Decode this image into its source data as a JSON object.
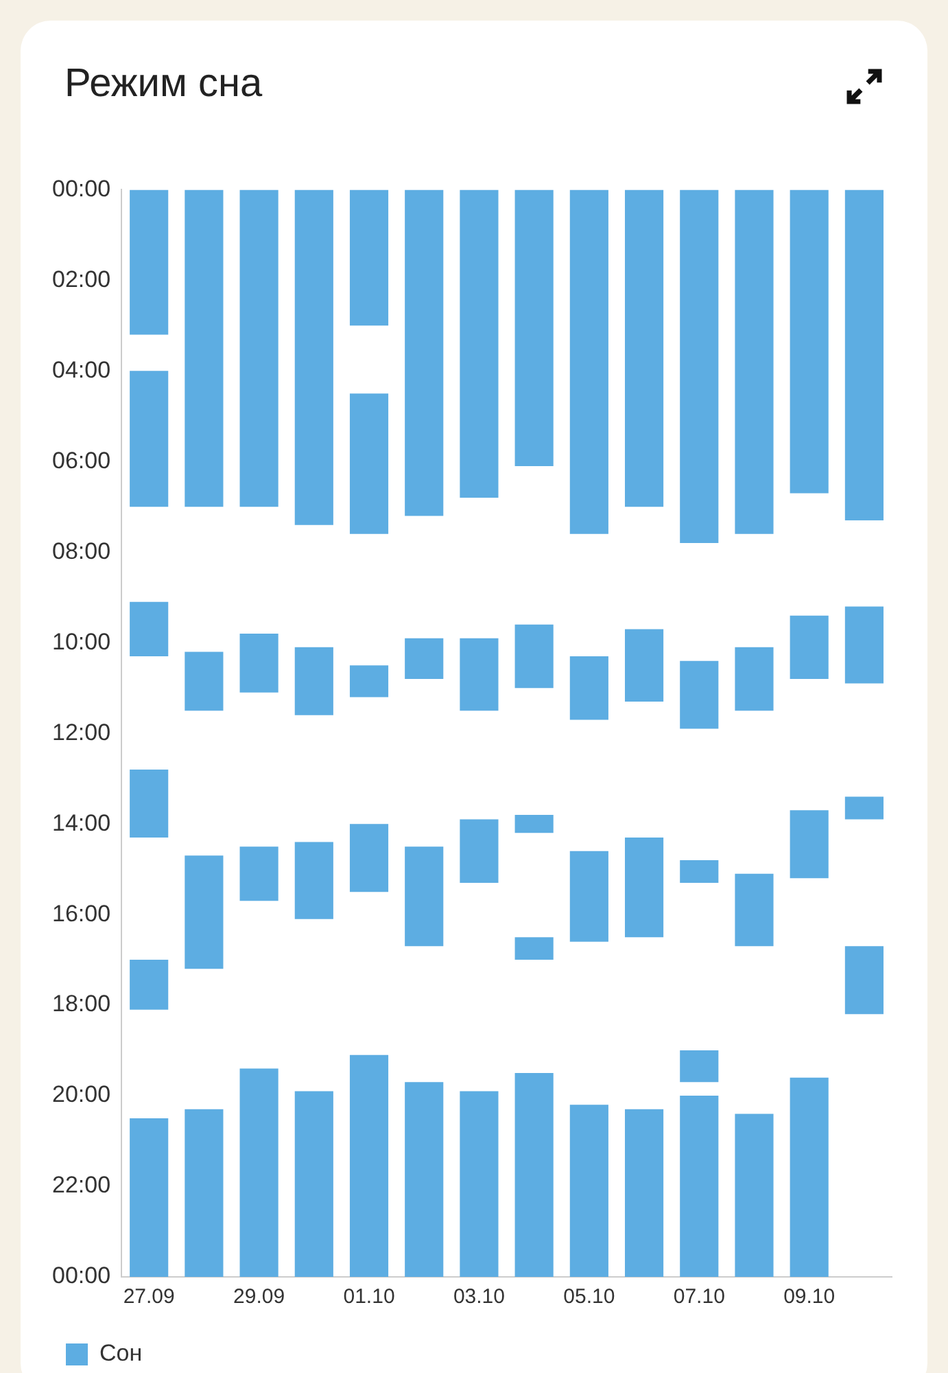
{
  "chart_data": {
    "type": "bar",
    "title": "Режим сна",
    "categories": [
      "27.09",
      null,
      "29.09",
      null,
      "01.10",
      null,
      "03.10",
      null,
      "05.10",
      null,
      "07.10",
      null,
      "09.10",
      null
    ],
    "series": [
      {
        "name": "Сон",
        "color": "#5dade2",
        "base": [
          0,
          0,
          0,
          0,
          0,
          0,
          0,
          0,
          0,
          0,
          0,
          0,
          0,
          0
        ],
        "values": [
          3.2,
          7.0,
          7.0,
          7.4,
          3.0,
          7.2,
          6.8,
          6.1,
          7.6,
          7.0,
          7.8,
          7.6,
          6.7,
          7.3
        ]
      },
      {
        "color": "#5dade2",
        "base": [
          4.0,
          null,
          null,
          null,
          4.5,
          null,
          null,
          null,
          null,
          null,
          null,
          null,
          null,
          null
        ],
        "values": [
          3.0,
          null,
          null,
          null,
          3.1,
          null,
          null,
          null,
          null,
          null,
          null,
          null,
          null,
          null
        ]
      },
      {
        "color": "#5dade2",
        "base": [
          9.1,
          10.2,
          9.8,
          10.1,
          10.5,
          9.9,
          9.9,
          9.6,
          10.3,
          9.7,
          10.4,
          10.1,
          9.4,
          9.2
        ],
        "values": [
          1.2,
          1.3,
          1.3,
          1.5,
          0.7,
          0.9,
          1.6,
          1.4,
          1.4,
          1.6,
          1.5,
          1.4,
          1.4,
          1.7
        ]
      },
      {
        "color": "#5dade2",
        "base": [
          12.8,
          14.7,
          14.5,
          14.4,
          14.0,
          14.5,
          13.9,
          13.8,
          14.6,
          14.3,
          14.8,
          15.1,
          13.7,
          13.4
        ],
        "values": [
          1.5,
          2.5,
          1.2,
          1.7,
          1.5,
          2.2,
          1.4,
          0.4,
          2.0,
          2.2,
          0.5,
          1.6,
          1.5,
          0.5
        ]
      },
      {
        "color": "#5dade2",
        "base": [
          17.0,
          null,
          null,
          null,
          null,
          null,
          null,
          16.5,
          null,
          null,
          null,
          null,
          null,
          16.7
        ],
        "values": [
          1.1,
          null,
          null,
          null,
          null,
          null,
          null,
          0.5,
          null,
          null,
          null,
          null,
          null,
          1.5
        ]
      },
      {
        "color": "#5dade2",
        "base": [
          null,
          null,
          null,
          null,
          null,
          null,
          null,
          null,
          null,
          null,
          19.0,
          null,
          null,
          null
        ],
        "values": [
          null,
          null,
          null,
          null,
          null,
          null,
          null,
          null,
          null,
          null,
          0.7,
          null,
          null,
          null
        ]
      },
      {
        "color": "#5dade2",
        "base": [
          20.5,
          20.3,
          19.4,
          19.9,
          19.1,
          19.7,
          19.9,
          19.5,
          20.2,
          20.3,
          20.0,
          20.4,
          19.6,
          null
        ],
        "values": [
          3.5,
          3.7,
          4.6,
          4.1,
          4.9,
          4.3,
          4.1,
          4.5,
          3.8,
          3.7,
          4.0,
          3.6,
          4.4,
          null
        ]
      }
    ],
    "ylim": [
      24,
      0
    ],
    "yticks": [
      {
        "value": 0,
        "label": "00:00"
      },
      {
        "value": 2,
        "label": "02:00"
      },
      {
        "value": 4,
        "label": "04:00"
      },
      {
        "value": 6,
        "label": "06:00"
      },
      {
        "value": 8,
        "label": "08:00"
      },
      {
        "value": 10,
        "label": "10:00"
      },
      {
        "value": 12,
        "label": "12:00"
      },
      {
        "value": 14,
        "label": "14:00"
      },
      {
        "value": 16,
        "label": "16:00"
      },
      {
        "value": 18,
        "label": "18:00"
      },
      {
        "value": 20,
        "label": "20:00"
      },
      {
        "value": 22,
        "label": "22:00"
      },
      {
        "value": 24,
        "label": "00:00"
      }
    ],
    "grid": false,
    "legend": "bottom left"
  }
}
